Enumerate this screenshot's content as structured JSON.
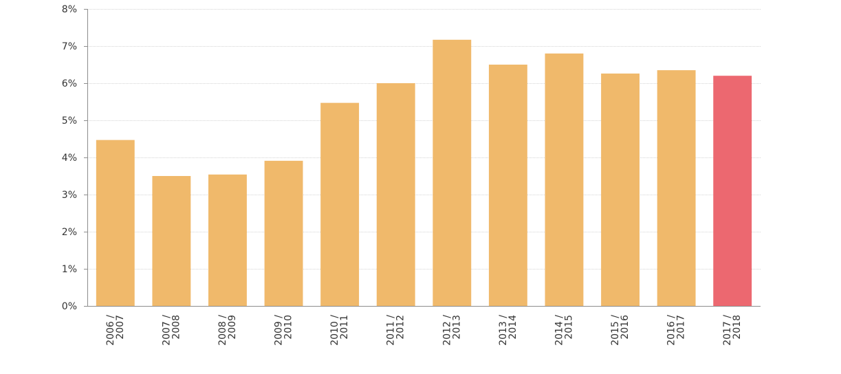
{
  "chart_data": {
    "type": "bar",
    "title": "",
    "xlabel": "",
    "ylabel": "",
    "categories": [
      [
        "2006 /",
        "2007"
      ],
      [
        "2007 /",
        "2008"
      ],
      [
        "2008 /",
        "2009"
      ],
      [
        "2009 /",
        "2010"
      ],
      [
        "2010 /",
        "2011"
      ],
      [
        "2011 /",
        "2012"
      ],
      [
        "2012 /",
        "2013"
      ],
      [
        "2013 /",
        "2014"
      ],
      [
        "2014 /",
        "2015"
      ],
      [
        "2015 /",
        "2016"
      ],
      [
        "2016 /",
        "2017"
      ],
      [
        "2017 /",
        "2018"
      ]
    ],
    "values": [
      4.47,
      3.5,
      3.54,
      3.91,
      5.47,
      6.0,
      7.17,
      6.5,
      6.8,
      6.26,
      6.35,
      6.2
    ],
    "ylim": [
      0,
      8
    ],
    "yticks": [
      "0%",
      "1%",
      "2%",
      "3%",
      "4%",
      "5%",
      "6%",
      "7%",
      "8%"
    ],
    "grid": true,
    "legend": "none",
    "colors": {
      "default": "#F0B96B",
      "highlight": "#EC6870"
    },
    "highlight_index": 11
  }
}
